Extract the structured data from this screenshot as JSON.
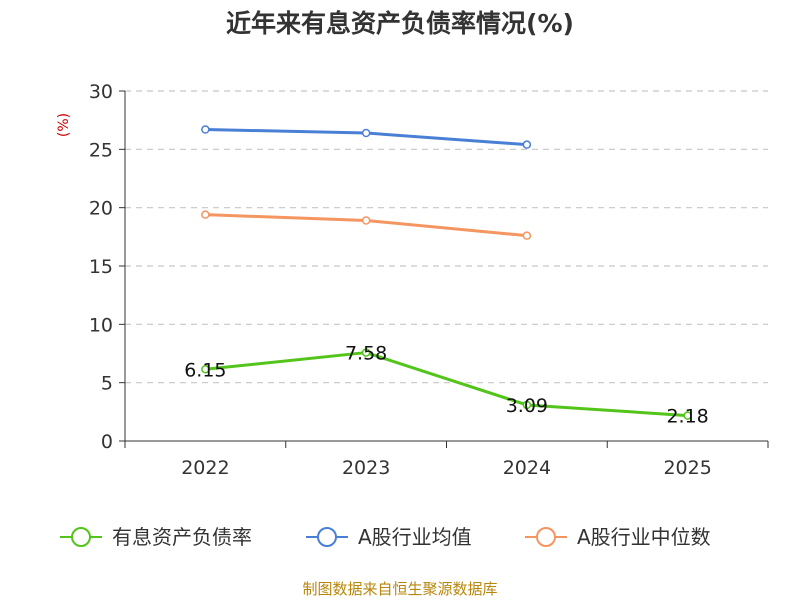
{
  "chart_data": {
    "type": "line",
    "title": "近年来有息资产负债率情况(%)",
    "ylabel": "(%)",
    "categories": [
      "2022",
      "2023",
      "2024",
      "2025"
    ],
    "ylim": [
      0,
      30
    ],
    "yticks": [
      "0",
      "5",
      "10",
      "15",
      "20",
      "25",
      "30"
    ],
    "grid": true,
    "legend_position": "bottom",
    "series": [
      {
        "name": "有息资产负债率",
        "color": "#52c41a",
        "values": [
          6.15,
          7.58,
          3.09,
          2.18
        ],
        "labels": [
          "6.15",
          "7.58",
          "3.09",
          "2.18"
        ]
      },
      {
        "name": "A股行业均值",
        "color": "#4a7fd6",
        "values": [
          26.7,
          26.4,
          25.4,
          null
        ]
      },
      {
        "name": "A股行业中位数",
        "color": "#f59560",
        "values": [
          19.4,
          18.9,
          17.6,
          null
        ]
      }
    ]
  },
  "source": "制图数据来自恒生聚源数据库"
}
